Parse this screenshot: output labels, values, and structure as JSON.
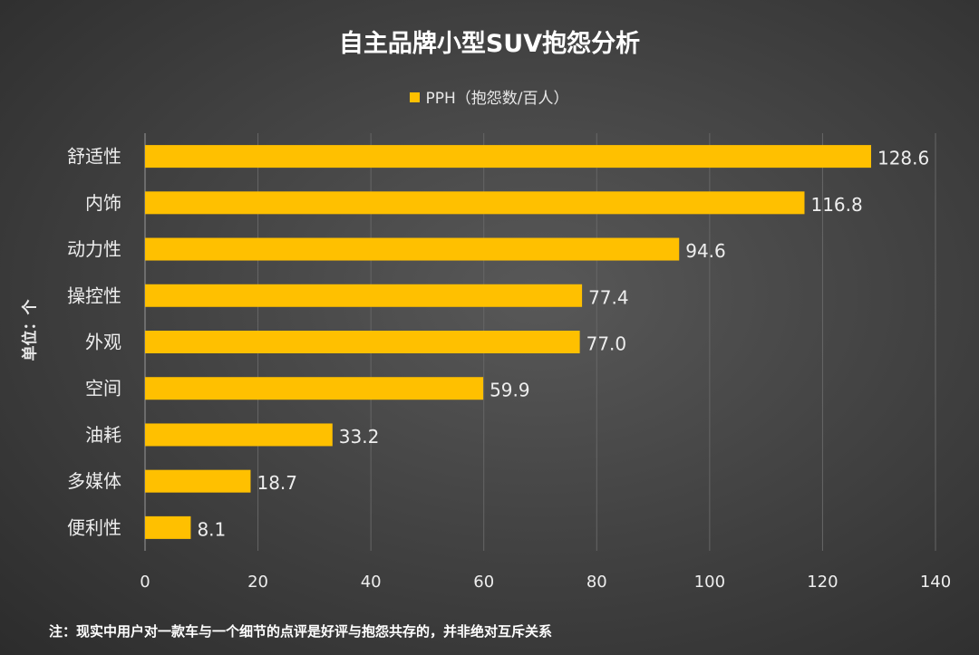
{
  "chart_data": {
    "type": "bar",
    "orientation": "horizontal",
    "title": "自主品牌小型SUV抱怨分析",
    "ylabel": "单位：个",
    "xlabel": "",
    "categories": [
      "舒适性",
      "内饰",
      "动力性",
      "操控性",
      "外观",
      "空间",
      "油耗",
      "多媒体",
      "便利性"
    ],
    "series": [
      {
        "name": "PPH（抱怨数/百人）",
        "values": [
          128.6,
          116.8,
          94.6,
          77.4,
          77.0,
          59.9,
          33.2,
          18.7,
          8.1
        ],
        "labels": [
          "128.6",
          "116.8",
          "94.6",
          "77.4",
          "77.0",
          "59.9",
          "33.2",
          "18.7",
          "8.1"
        ],
        "color": "#FFC000"
      }
    ],
    "xlim": [
      0,
      140
    ],
    "xticks": [
      "0",
      "20",
      "40",
      "60",
      "80",
      "100",
      "120",
      "140"
    ],
    "grid": "vertical",
    "legend": "top"
  },
  "note": "注：现实中用户对一款车与一个细节的点评是好评与抱怨共存的，并非绝对互斥关系"
}
